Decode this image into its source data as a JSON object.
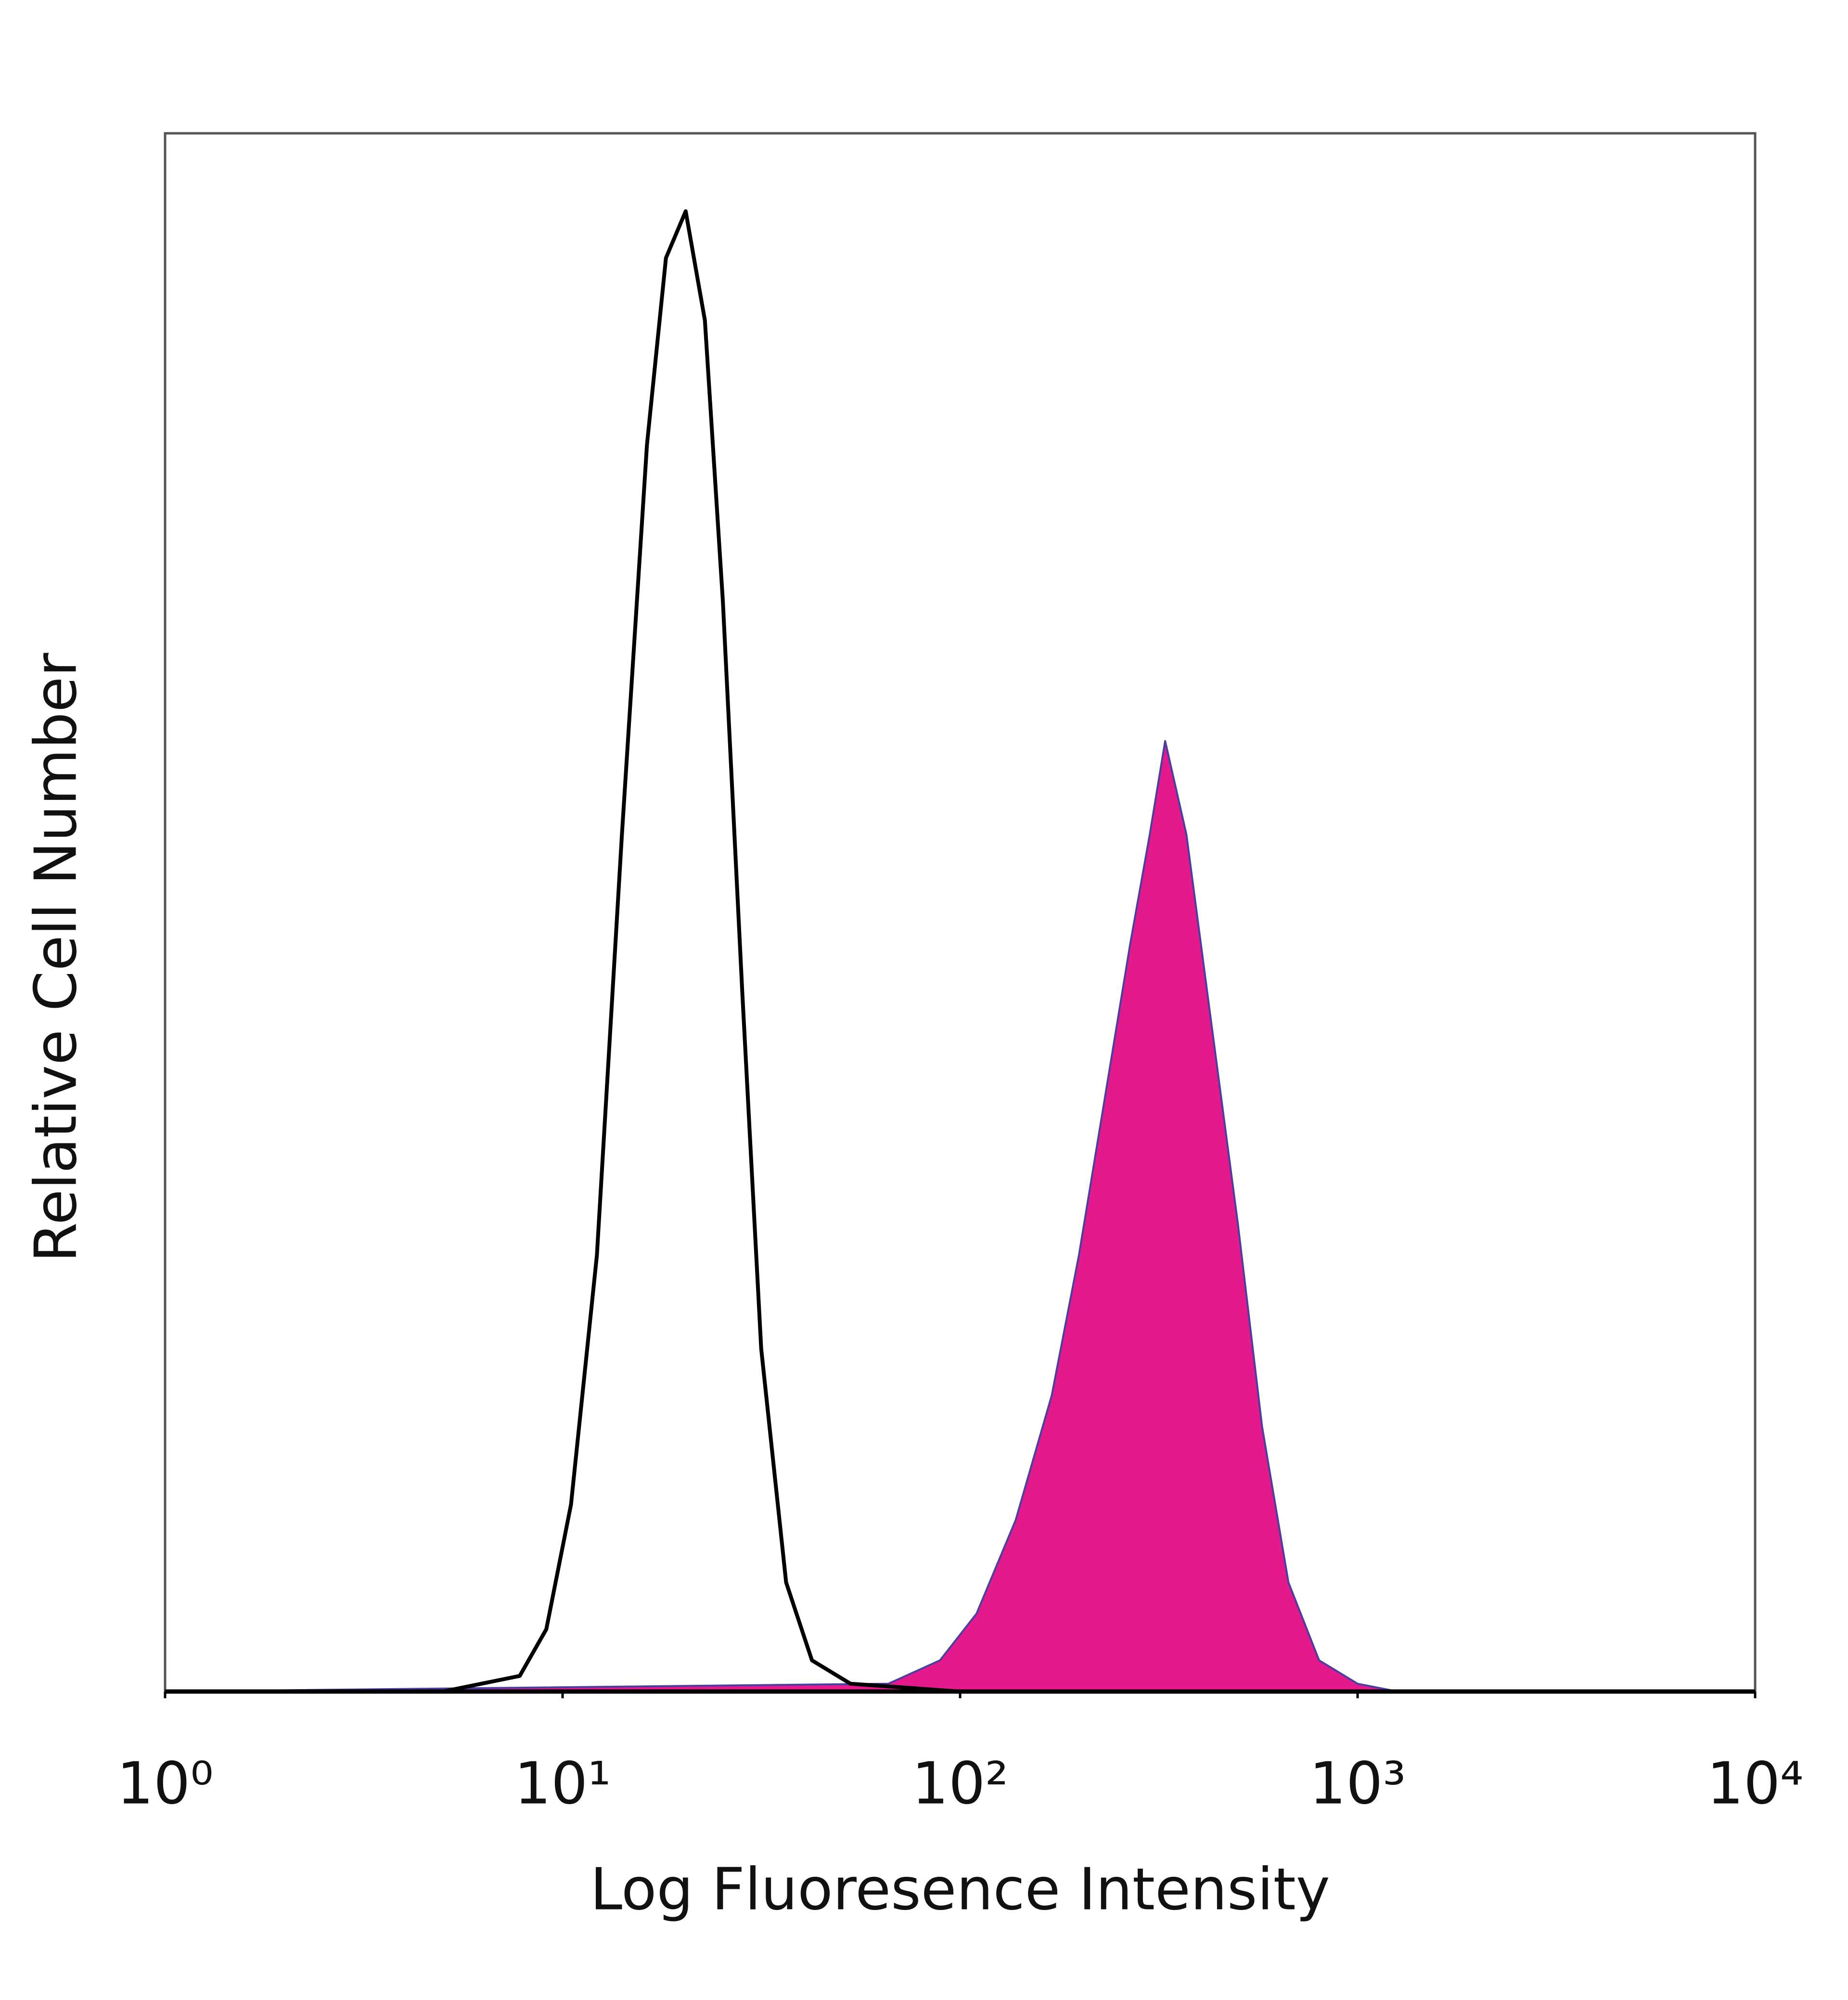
{
  "chart_data": {
    "type": "histogram-overlay",
    "x_label": "Log Fluoresence Intensity",
    "y_label": "Relative Cell Number",
    "xscale": "log",
    "xlim": [
      1,
      10000
    ],
    "xticks": [
      {
        "value": 1,
        "label": "10⁰"
      },
      {
        "value": 10,
        "label": "10¹"
      },
      {
        "value": 100,
        "label": "10²"
      },
      {
        "value": 1000,
        "label": "10³"
      },
      {
        "value": 10000,
        "label": "10⁴"
      }
    ],
    "ylim": [
      0,
      100
    ],
    "series": [
      {
        "color": "#000000",
        "filled": false,
        "x": [
          1,
          5,
          7.8,
          9.1,
          10.5,
          12.2,
          14.1,
          16.3,
          18.2,
          20.4,
          22.8,
          25.3,
          28.3,
          31.6,
          36.5,
          42.4,
          53,
          100,
          10000
        ],
        "values": [
          0,
          0,
          1,
          4,
          12,
          28,
          55,
          80,
          92,
          95,
          88,
          70,
          45,
          22,
          7,
          2,
          0.5,
          0,
          0
        ]
      },
      {
        "color": "#e4198c",
        "edge": "#4a3fa0",
        "filled": true,
        "x": [
          1,
          66,
          89,
          110,
          138,
          170,
          199,
          231,
          268,
          300,
          328,
          371,
          428,
          500,
          575,
          670,
          800,
          1000,
          1260,
          10000
        ],
        "values": [
          0,
          0.5,
          2,
          5,
          11,
          19,
          28,
          38,
          48,
          55,
          61,
          55,
          43,
          30,
          17,
          7,
          2,
          0.5,
          0,
          0
        ]
      }
    ]
  }
}
